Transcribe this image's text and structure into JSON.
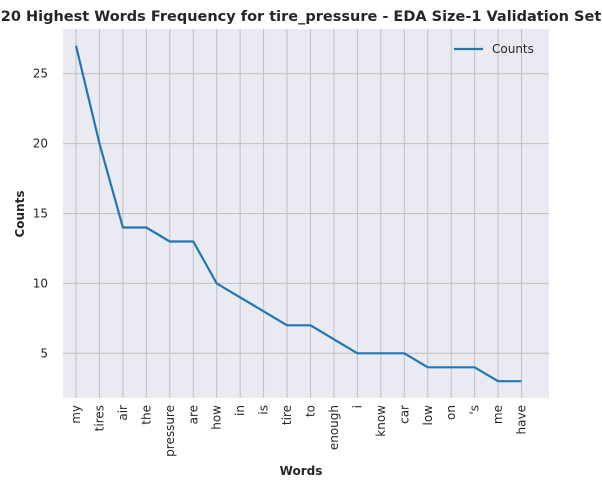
{
  "chart_data": {
    "type": "line",
    "title": "20 Highest Words Frequency for tire_pressure - EDA Size-1 Validation Set",
    "xlabel": "Words",
    "ylabel": "Counts",
    "categories": [
      "my",
      "tires",
      "air",
      "the",
      "pressure",
      "are",
      "how",
      "in",
      "is",
      "tire",
      "to",
      "enough",
      "i",
      "know",
      "car",
      "low",
      "on",
      "'s",
      "me",
      "have"
    ],
    "series": [
      {
        "name": "Counts",
        "color": "#1f77b4",
        "values": [
          27,
          20,
          14,
          14,
          13,
          13,
          10,
          9,
          8,
          7,
          7,
          6,
          5,
          5,
          5,
          4,
          4,
          4,
          3,
          3
        ]
      }
    ],
    "yticks": [
      5,
      10,
      15,
      20,
      25
    ],
    "ylim": [
      1.8,
      28.2
    ],
    "grid": true,
    "legend": "top-right",
    "background": "#eaeaf2",
    "grid_color": "#c0c0c0"
  }
}
